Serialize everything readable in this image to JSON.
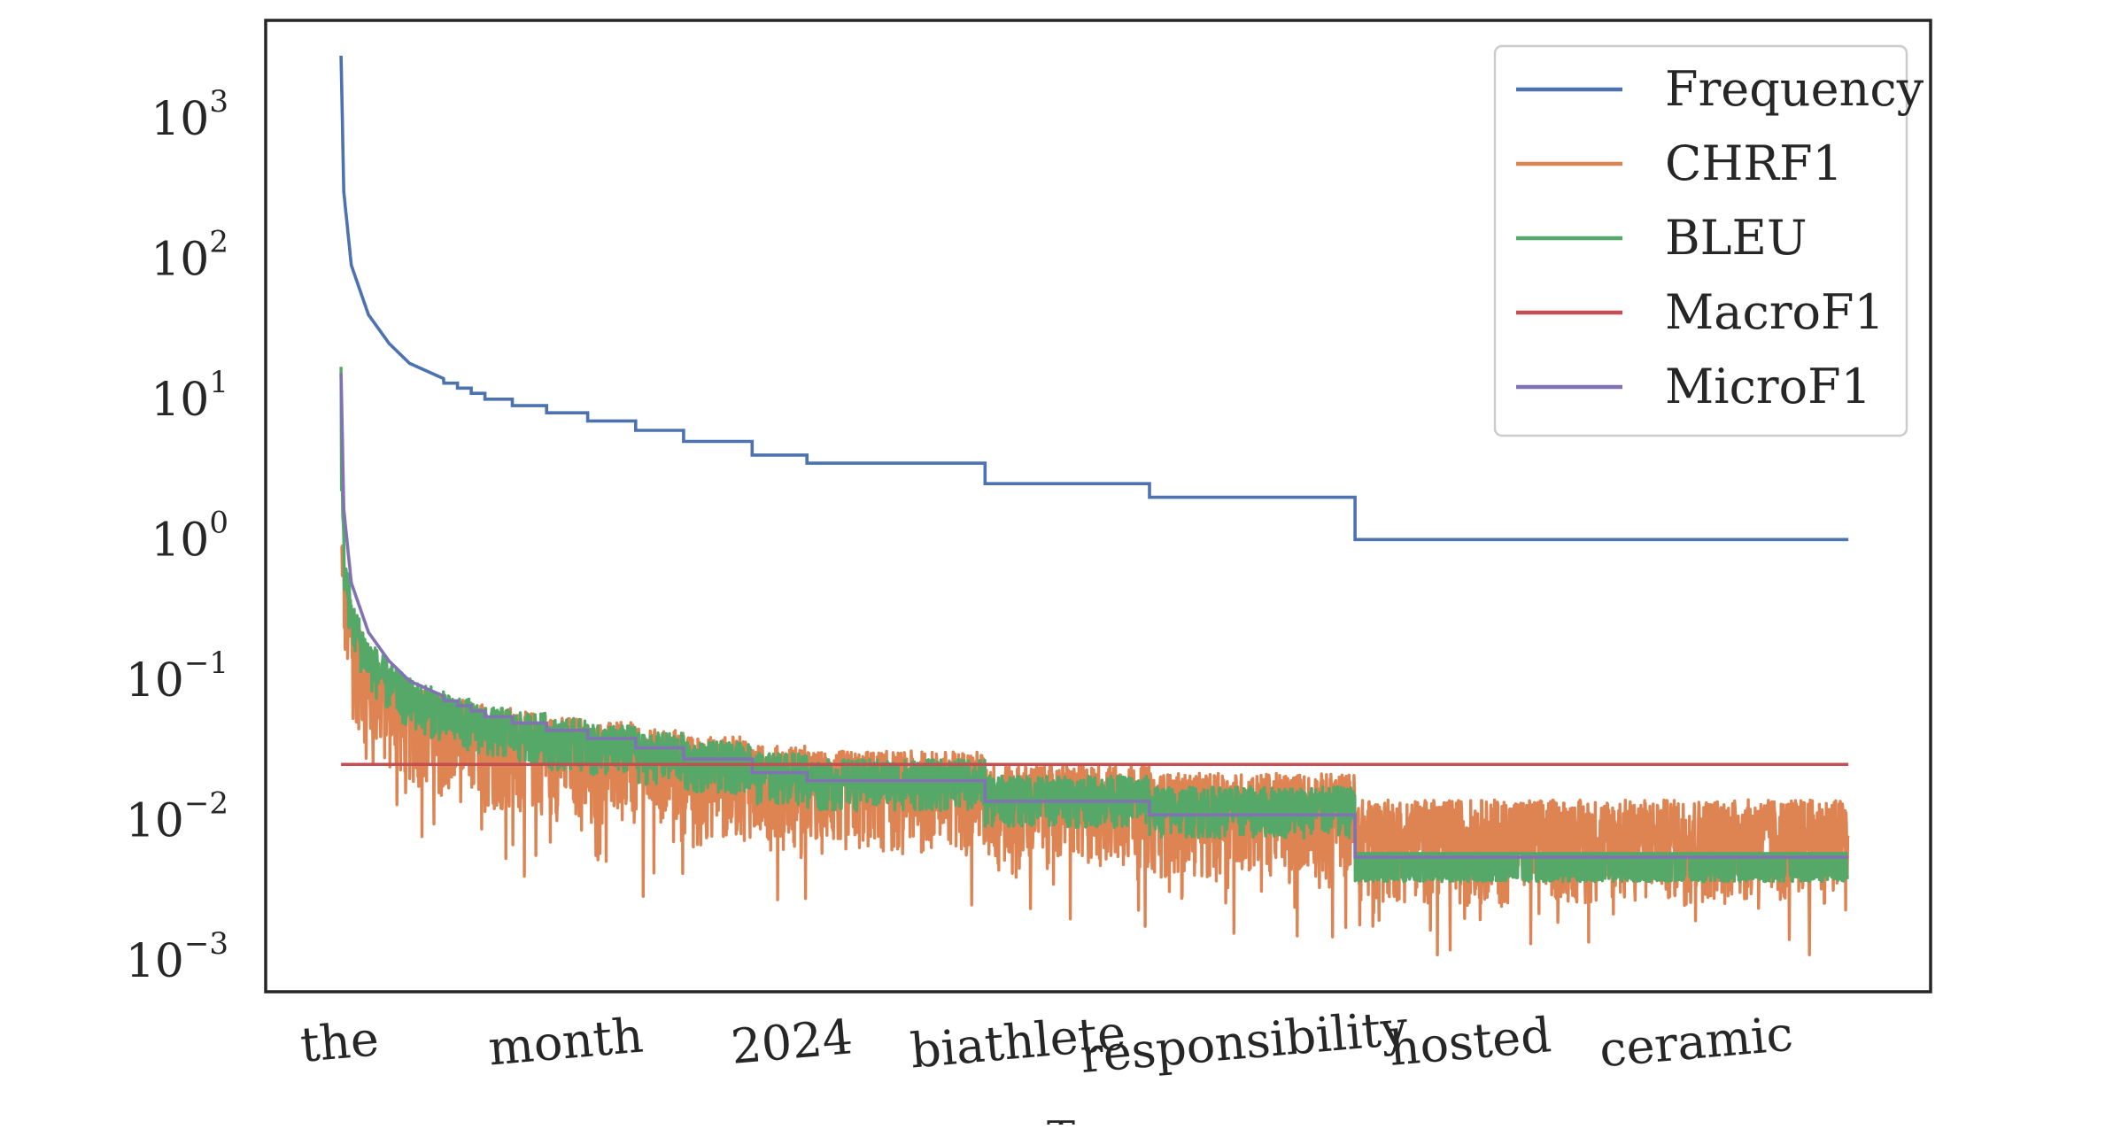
{
  "chart_data": {
    "type": "line",
    "title": "",
    "xlabel": "T",
    "ylabel": "",
    "yscale": "log",
    "ylim": [
      0.0006,
      5000
    ],
    "xlim": [
      -1100,
      23200
    ],
    "n_tokens": 22000,
    "grid": false,
    "legend_position": "top-right",
    "x_tick_labels": [
      {
        "label": "the",
        "x": 0
      },
      {
        "label": "month",
        "x": 3300
      },
      {
        "label": "2024",
        "x": 6600
      },
      {
        "label": "biathlete",
        "x": 9900
      },
      {
        "label": "responsibility",
        "x": 13200
      },
      {
        "label": "hosted",
        "x": 16500
      },
      {
        "label": "ceramic",
        "x": 19800
      }
    ],
    "y_ticks": [
      {
        "base": "10",
        "exp": "3",
        "value": 1000
      },
      {
        "base": "10",
        "exp": "2",
        "value": 100
      },
      {
        "base": "10",
        "exp": "1",
        "value": 10
      },
      {
        "base": "10",
        "exp": "0",
        "value": 1
      },
      {
        "base": "10",
        "exp": "−1",
        "value": 0.1
      },
      {
        "base": "10",
        "exp": "−2",
        "value": 0.01
      },
      {
        "base": "10",
        "exp": "−3",
        "value": 0.001
      }
    ],
    "series": [
      {
        "name": "Frequency",
        "color": "#4c72b0",
        "knots": [
          [
            0,
            2800
          ],
          [
            40,
            300
          ],
          [
            150,
            90
          ],
          [
            400,
            40
          ],
          [
            700,
            25
          ],
          [
            1000,
            18
          ],
          [
            1500,
            14
          ]
        ],
        "steps": [
          [
            1500,
            13
          ],
          [
            1700,
            12
          ],
          [
            1900,
            11
          ],
          [
            2100,
            10
          ],
          [
            2500,
            9
          ],
          [
            3000,
            8
          ],
          [
            3600,
            7
          ],
          [
            4300,
            6
          ],
          [
            5000,
            5
          ],
          [
            6000,
            4
          ],
          [
            6800,
            3.5
          ],
          [
            9400,
            2.5
          ],
          [
            11800,
            2
          ],
          [
            14800,
            1
          ]
        ]
      },
      {
        "name": "CHRF1",
        "color": "#dd8452"
      },
      {
        "name": "BLEU",
        "color": "#55a868"
      },
      {
        "name": "MacroF1",
        "color": "#c44e52",
        "value": 0.025
      },
      {
        "name": "MicroF1",
        "color": "#8172b3"
      }
    ]
  }
}
